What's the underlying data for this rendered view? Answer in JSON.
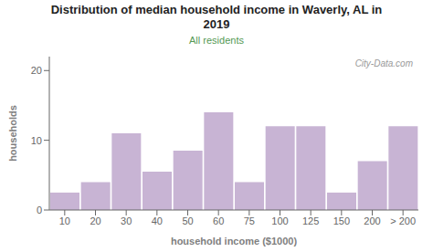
{
  "chart_data": {
    "type": "bar",
    "title": "Distribution of median household income in Waverly, AL in\n2019",
    "subtitle": "All residents",
    "xlabel": "household income ($1000)",
    "ylabel": "households",
    "categories": [
      "10",
      "20",
      "30",
      "40",
      "50",
      "60",
      "75",
      "100",
      "125",
      "150",
      "200",
      "> 200"
    ],
    "values": [
      2.5,
      4,
      11,
      5.5,
      8.5,
      14,
      4,
      12,
      12,
      2.5,
      7,
      12
    ],
    "color": "#c8b4d4",
    "ylim": [
      0,
      22
    ],
    "yticks": [
      0,
      10,
      20
    ],
    "grid": false,
    "annotations": [
      "City-Data.com"
    ]
  }
}
